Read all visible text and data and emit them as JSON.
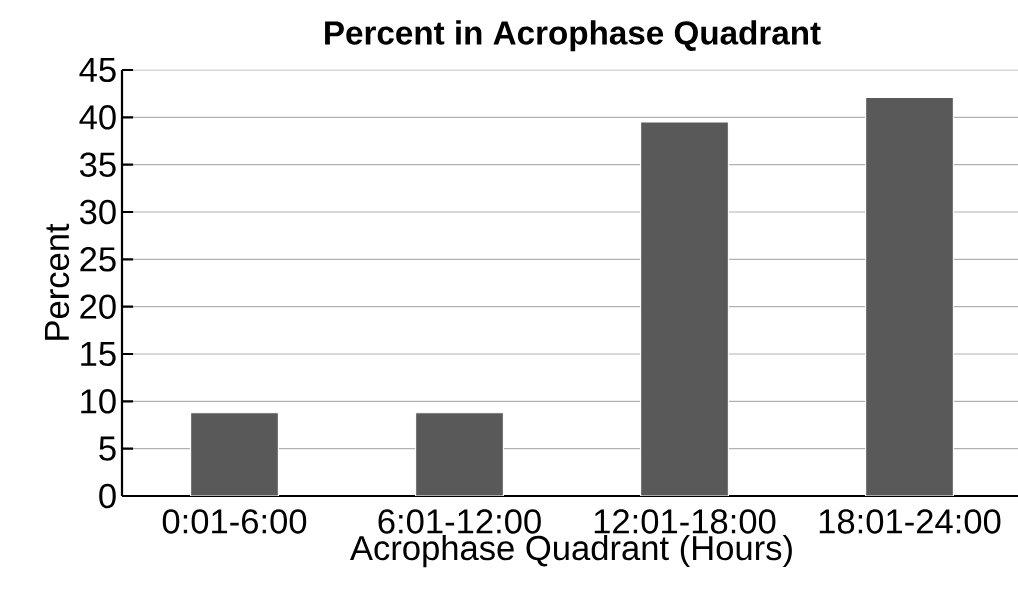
{
  "chart_data": {
    "type": "bar",
    "title": "Percent in Acrophase Quadrant",
    "xlabel": "Acrophase Quadrant (Hours)",
    "ylabel": "Percent",
    "categories": [
      "0:01-6:00",
      "6:01-12:00",
      "12:01-18:00",
      "18:01-24:00"
    ],
    "values": [
      8.8,
      8.8,
      39.5,
      42.1
    ],
    "color": "#595959",
    "ylim": [
      0,
      45
    ],
    "yticks": [
      0,
      5,
      10,
      15,
      20,
      25,
      30,
      35,
      40,
      45
    ],
    "grid": "y"
  }
}
